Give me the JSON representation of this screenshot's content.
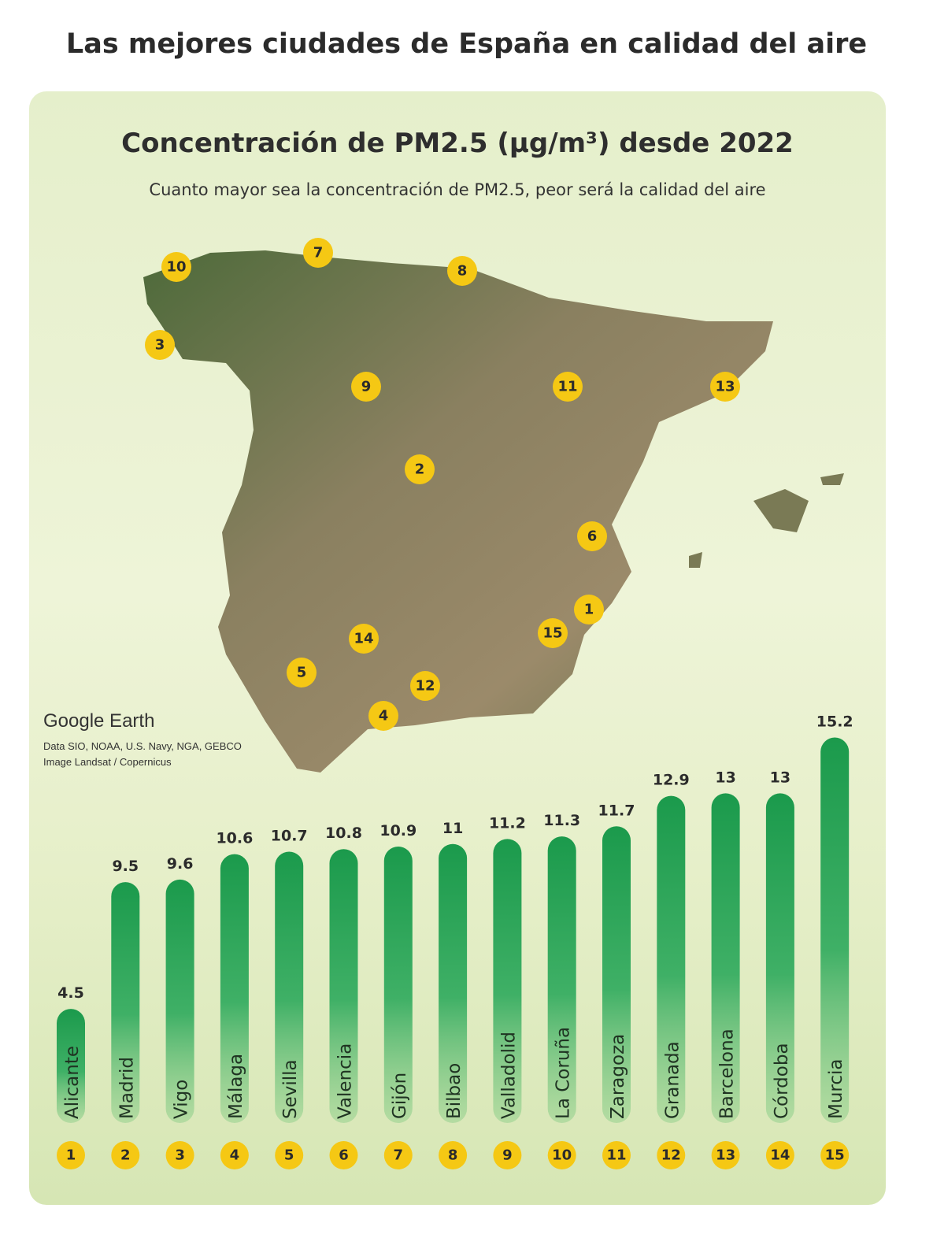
{
  "title": "Las mejores ciudades de España en calidad del aire",
  "map": {
    "attribution_logo": "Google Earth",
    "credit_line1": "Data SIO, NOAA, U.S. Navy, NGA, GEBCO",
    "credit_line2": "Image Landsat / Copernicus",
    "markers": [
      "1",
      "2",
      "3",
      "4",
      "5",
      "6",
      "7",
      "8",
      "9",
      "10",
      "11",
      "12",
      "13",
      "14",
      "15"
    ]
  },
  "colors": {
    "bar": "#1f9a4e",
    "marker": "#f5c814",
    "panel": "#e5efcb"
  },
  "chart_data": {
    "type": "bar",
    "title": "Concentración de PM2.5 (µg/m³) desde 2022",
    "subtitle": "Cuanto mayor sea la concentración de PM2.5, peor será la calidad del aire",
    "categories": [
      "Alicante",
      "Madrid",
      "Vigo",
      "Málaga",
      "Sevilla",
      "Valencia",
      "Gijón",
      "Bilbao",
      "Valladolid",
      "La Coruña",
      "Zaragoza",
      "Granada",
      "Barcelona",
      "Córdoba",
      "Murcia"
    ],
    "ranks": [
      "1",
      "2",
      "3",
      "4",
      "5",
      "6",
      "7",
      "8",
      "9",
      "10",
      "11",
      "12",
      "13",
      "14",
      "15"
    ],
    "values": [
      4.5,
      9.5,
      9.6,
      10.6,
      10.7,
      10.8,
      10.9,
      11,
      11.2,
      11.3,
      11.7,
      12.9,
      13,
      13,
      15.2
    ],
    "value_labels": [
      "4.5",
      "9.5",
      "9.6",
      "10.6",
      "10.7",
      "10.8",
      "10.9",
      "11",
      "11.2",
      "11.3",
      "11.7",
      "12.9",
      "13",
      "13",
      "15.2"
    ],
    "xlabel": "",
    "ylabel": "",
    "ylim": [
      0,
      15.2
    ],
    "grid": false,
    "legend": "none"
  }
}
